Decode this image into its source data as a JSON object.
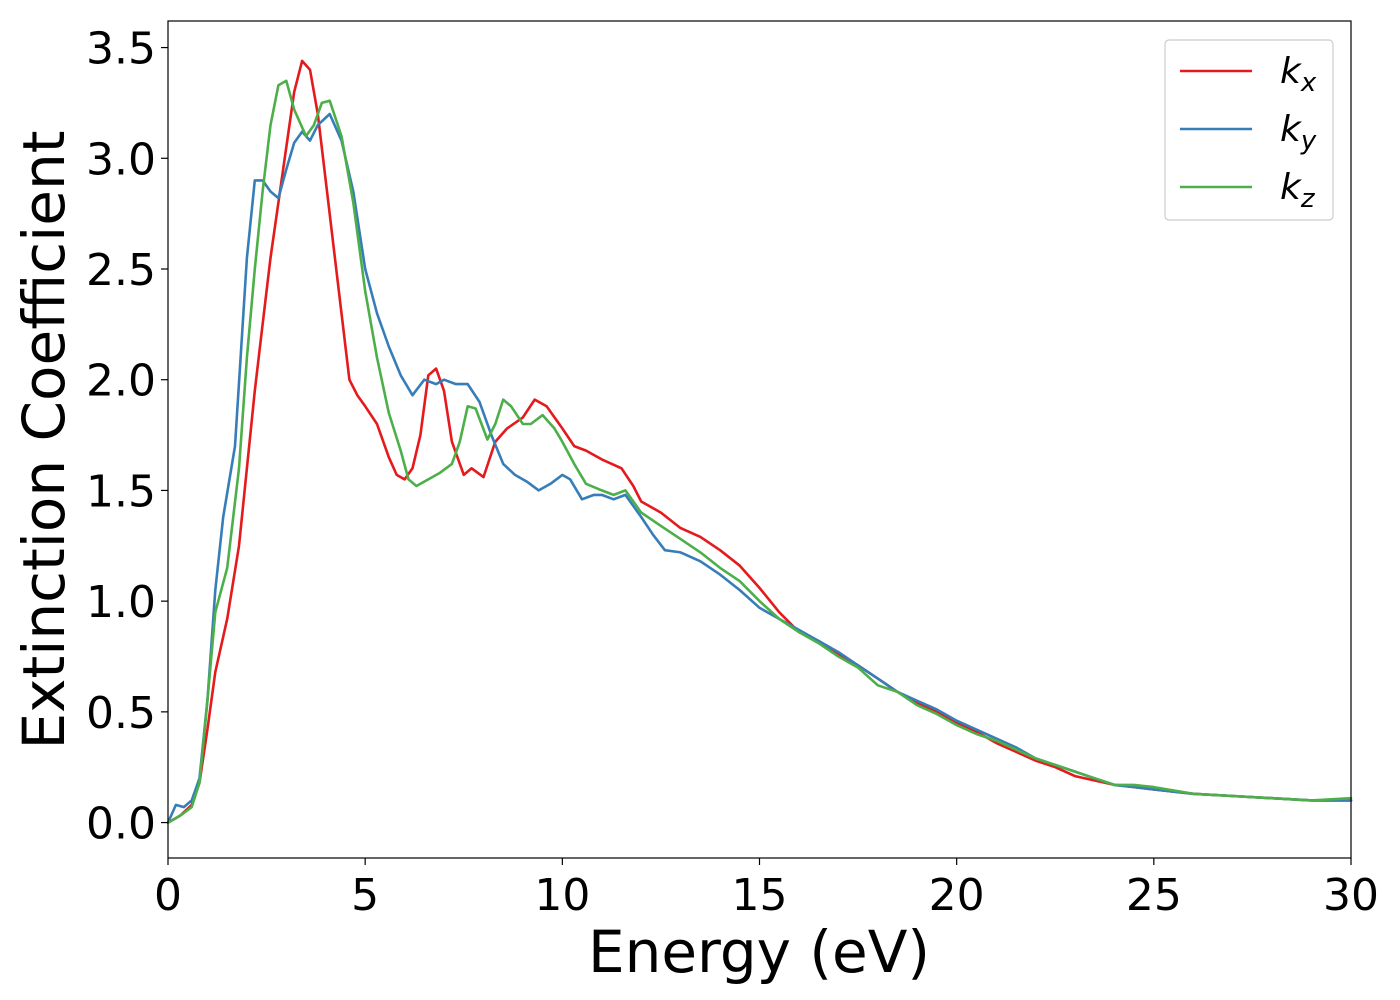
{
  "chart_data": {
    "type": "line",
    "title": "",
    "xlabel": "Energy (eV)",
    "ylabel": "Extinction Coefficient",
    "xlim": [
      0,
      30
    ],
    "ylim": [
      -0.16,
      3.62
    ],
    "xticks": [
      0,
      5,
      10,
      15,
      20,
      25,
      30
    ],
    "xtick_labels": [
      "0",
      "5",
      "10",
      "15",
      "20",
      "25",
      "30"
    ],
    "yticks": [
      0.0,
      0.5,
      1.0,
      1.5,
      2.0,
      2.5,
      3.0,
      3.5
    ],
    "ytick_labels": [
      "0.0",
      "0.5",
      "1.0",
      "1.5",
      "2.0",
      "2.5",
      "3.0",
      "3.5"
    ],
    "grid": false,
    "legend_position": "top-right",
    "series": [
      {
        "name": "k",
        "subscript": "x",
        "color": "#e41a1c",
        "points": [
          [
            0,
            0
          ],
          [
            0.3,
            0.03
          ],
          [
            0.6,
            0.08
          ],
          [
            0.8,
            0.18
          ],
          [
            1.0,
            0.42
          ],
          [
            1.2,
            0.68
          ],
          [
            1.5,
            0.92
          ],
          [
            1.8,
            1.25
          ],
          [
            2.0,
            1.6
          ],
          [
            2.2,
            1.95
          ],
          [
            2.4,
            2.25
          ],
          [
            2.6,
            2.55
          ],
          [
            2.8,
            2.8
          ],
          [
            3.0,
            3.05
          ],
          [
            3.2,
            3.3
          ],
          [
            3.4,
            3.44
          ],
          [
            3.6,
            3.4
          ],
          [
            3.8,
            3.2
          ],
          [
            4.0,
            2.9
          ],
          [
            4.2,
            2.6
          ],
          [
            4.4,
            2.3
          ],
          [
            4.6,
            2.0
          ],
          [
            4.8,
            1.93
          ],
          [
            5.0,
            1.88
          ],
          [
            5.3,
            1.8
          ],
          [
            5.6,
            1.65
          ],
          [
            5.8,
            1.57
          ],
          [
            6.0,
            1.55
          ],
          [
            6.2,
            1.6
          ],
          [
            6.4,
            1.75
          ],
          [
            6.6,
            2.02
          ],
          [
            6.8,
            2.05
          ],
          [
            7.0,
            1.95
          ],
          [
            7.2,
            1.72
          ],
          [
            7.5,
            1.57
          ],
          [
            7.7,
            1.6
          ],
          [
            8.0,
            1.56
          ],
          [
            8.3,
            1.72
          ],
          [
            8.6,
            1.78
          ],
          [
            9.0,
            1.83
          ],
          [
            9.3,
            1.91
          ],
          [
            9.6,
            1.88
          ],
          [
            10.0,
            1.78
          ],
          [
            10.3,
            1.7
          ],
          [
            10.6,
            1.68
          ],
          [
            11.0,
            1.64
          ],
          [
            11.5,
            1.6
          ],
          [
            11.8,
            1.52
          ],
          [
            12.0,
            1.45
          ],
          [
            12.5,
            1.4
          ],
          [
            13.0,
            1.33
          ],
          [
            13.5,
            1.29
          ],
          [
            14.0,
            1.23
          ],
          [
            14.5,
            1.16
          ],
          [
            15.0,
            1.06
          ],
          [
            15.5,
            0.95
          ],
          [
            16.0,
            0.86
          ],
          [
            16.5,
            0.82
          ],
          [
            17.0,
            0.76
          ],
          [
            17.5,
            0.71
          ],
          [
            18.0,
            0.65
          ],
          [
            18.5,
            0.59
          ],
          [
            19.0,
            0.54
          ],
          [
            19.5,
            0.5
          ],
          [
            20.0,
            0.45
          ],
          [
            20.5,
            0.41
          ],
          [
            21.0,
            0.36
          ],
          [
            21.5,
            0.32
          ],
          [
            22.0,
            0.28
          ],
          [
            22.5,
            0.25
          ],
          [
            23.0,
            0.21
          ],
          [
            23.5,
            0.19
          ],
          [
            24.0,
            0.17
          ],
          [
            24.5,
            0.16
          ],
          [
            25.0,
            0.15
          ],
          [
            26.0,
            0.13
          ],
          [
            27.0,
            0.12
          ],
          [
            28.0,
            0.11
          ],
          [
            29.0,
            0.1
          ],
          [
            30.0,
            0.1
          ]
        ]
      },
      {
        "name": "k",
        "subscript": "y",
        "color": "#377eb8",
        "points": [
          [
            0,
            0
          ],
          [
            0.2,
            0.08
          ],
          [
            0.4,
            0.07
          ],
          [
            0.6,
            0.1
          ],
          [
            0.8,
            0.2
          ],
          [
            1.0,
            0.55
          ],
          [
            1.2,
            1.05
          ],
          [
            1.4,
            1.38
          ],
          [
            1.7,
            1.7
          ],
          [
            2.0,
            2.55
          ],
          [
            2.2,
            2.9
          ],
          [
            2.4,
            2.9
          ],
          [
            2.6,
            2.85
          ],
          [
            2.8,
            2.82
          ],
          [
            3.0,
            2.95
          ],
          [
            3.2,
            3.07
          ],
          [
            3.4,
            3.12
          ],
          [
            3.6,
            3.08
          ],
          [
            3.8,
            3.15
          ],
          [
            4.1,
            3.2
          ],
          [
            4.4,
            3.08
          ],
          [
            4.7,
            2.85
          ],
          [
            5.0,
            2.5
          ],
          [
            5.3,
            2.3
          ],
          [
            5.6,
            2.15
          ],
          [
            5.9,
            2.02
          ],
          [
            6.2,
            1.93
          ],
          [
            6.5,
            2.0
          ],
          [
            6.8,
            1.98
          ],
          [
            7.0,
            2.0
          ],
          [
            7.3,
            1.98
          ],
          [
            7.6,
            1.98
          ],
          [
            7.9,
            1.9
          ],
          [
            8.2,
            1.75
          ],
          [
            8.5,
            1.62
          ],
          [
            8.8,
            1.57
          ],
          [
            9.1,
            1.54
          ],
          [
            9.4,
            1.5
          ],
          [
            9.7,
            1.53
          ],
          [
            10.0,
            1.57
          ],
          [
            10.2,
            1.55
          ],
          [
            10.5,
            1.46
          ],
          [
            10.8,
            1.48
          ],
          [
            11.0,
            1.48
          ],
          [
            11.3,
            1.46
          ],
          [
            11.6,
            1.48
          ],
          [
            12.0,
            1.38
          ],
          [
            12.3,
            1.3
          ],
          [
            12.6,
            1.23
          ],
          [
            13.0,
            1.22
          ],
          [
            13.5,
            1.18
          ],
          [
            14.0,
            1.12
          ],
          [
            14.5,
            1.05
          ],
          [
            15.0,
            0.97
          ],
          [
            15.5,
            0.92
          ],
          [
            16.0,
            0.87
          ],
          [
            16.5,
            0.82
          ],
          [
            17.0,
            0.77
          ],
          [
            17.5,
            0.71
          ],
          [
            18.0,
            0.65
          ],
          [
            18.5,
            0.59
          ],
          [
            19.0,
            0.55
          ],
          [
            19.5,
            0.51
          ],
          [
            20.0,
            0.46
          ],
          [
            20.5,
            0.42
          ],
          [
            21.0,
            0.38
          ],
          [
            21.5,
            0.34
          ],
          [
            22.0,
            0.29
          ],
          [
            22.5,
            0.26
          ],
          [
            23.0,
            0.23
          ],
          [
            23.5,
            0.2
          ],
          [
            24.0,
            0.17
          ],
          [
            24.5,
            0.16
          ],
          [
            25.0,
            0.15
          ],
          [
            26.0,
            0.13
          ],
          [
            27.0,
            0.12
          ],
          [
            28.0,
            0.11
          ],
          [
            29.0,
            0.1
          ],
          [
            30.0,
            0.1
          ]
        ]
      },
      {
        "name": "k",
        "subscript": "z",
        "color": "#4daf4a",
        "points": [
          [
            0,
            0
          ],
          [
            0.3,
            0.03
          ],
          [
            0.6,
            0.07
          ],
          [
            0.8,
            0.18
          ],
          [
            1.0,
            0.55
          ],
          [
            1.2,
            0.95
          ],
          [
            1.5,
            1.15
          ],
          [
            1.8,
            1.6
          ],
          [
            2.0,
            2.1
          ],
          [
            2.2,
            2.5
          ],
          [
            2.4,
            2.85
          ],
          [
            2.6,
            3.15
          ],
          [
            2.8,
            3.33
          ],
          [
            3.0,
            3.35
          ],
          [
            3.2,
            3.22
          ],
          [
            3.5,
            3.1
          ],
          [
            3.7,
            3.15
          ],
          [
            3.9,
            3.25
          ],
          [
            4.1,
            3.26
          ],
          [
            4.4,
            3.1
          ],
          [
            4.7,
            2.8
          ],
          [
            5.0,
            2.4
          ],
          [
            5.3,
            2.1
          ],
          [
            5.6,
            1.85
          ],
          [
            5.9,
            1.68
          ],
          [
            6.1,
            1.55
          ],
          [
            6.3,
            1.52
          ],
          [
            6.6,
            1.55
          ],
          [
            6.9,
            1.58
          ],
          [
            7.2,
            1.62
          ],
          [
            7.4,
            1.72
          ],
          [
            7.6,
            1.88
          ],
          [
            7.8,
            1.87
          ],
          [
            8.1,
            1.73
          ],
          [
            8.3,
            1.8
          ],
          [
            8.5,
            1.91
          ],
          [
            8.7,
            1.88
          ],
          [
            9.0,
            1.8
          ],
          [
            9.2,
            1.8
          ],
          [
            9.5,
            1.84
          ],
          [
            9.8,
            1.78
          ],
          [
            10.0,
            1.72
          ],
          [
            10.3,
            1.62
          ],
          [
            10.6,
            1.53
          ],
          [
            11.0,
            1.5
          ],
          [
            11.3,
            1.48
          ],
          [
            11.6,
            1.5
          ],
          [
            12.0,
            1.4
          ],
          [
            12.5,
            1.34
          ],
          [
            13.0,
            1.28
          ],
          [
            13.5,
            1.22
          ],
          [
            14.0,
            1.15
          ],
          [
            14.5,
            1.09
          ],
          [
            15.0,
            1.0
          ],
          [
            15.5,
            0.92
          ],
          [
            16.0,
            0.86
          ],
          [
            16.5,
            0.81
          ],
          [
            17.0,
            0.75
          ],
          [
            17.5,
            0.7
          ],
          [
            18.0,
            0.62
          ],
          [
            18.5,
            0.59
          ],
          [
            19.0,
            0.53
          ],
          [
            19.5,
            0.49
          ],
          [
            20.0,
            0.44
          ],
          [
            20.5,
            0.4
          ],
          [
            21.0,
            0.37
          ],
          [
            21.5,
            0.33
          ],
          [
            22.0,
            0.29
          ],
          [
            22.5,
            0.26
          ],
          [
            23.0,
            0.23
          ],
          [
            23.5,
            0.2
          ],
          [
            24.0,
            0.17
          ],
          [
            24.5,
            0.17
          ],
          [
            25.0,
            0.16
          ],
          [
            26.0,
            0.13
          ],
          [
            27.0,
            0.12
          ],
          [
            28.0,
            0.11
          ],
          [
            29.0,
            0.1
          ],
          [
            30.0,
            0.11
          ]
        ]
      }
    ]
  }
}
